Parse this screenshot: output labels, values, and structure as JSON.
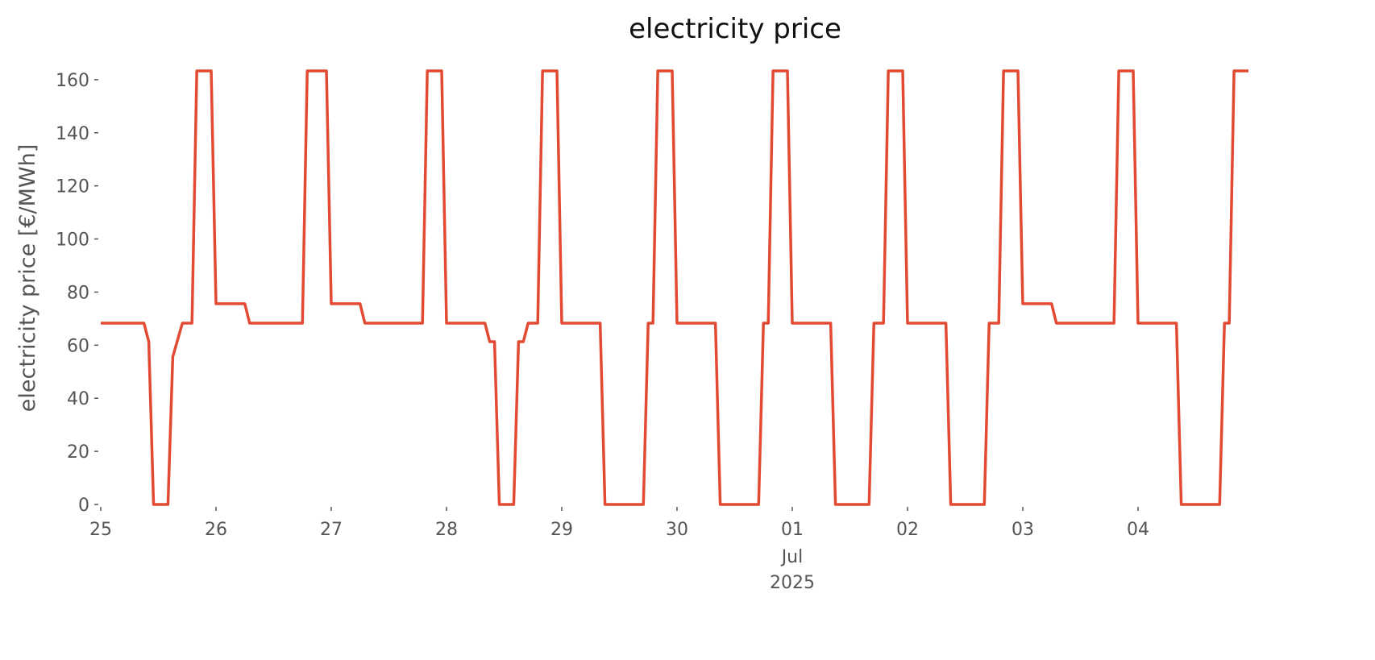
{
  "chart_data": {
    "type": "line",
    "title": "electricity price",
    "ylabel": "electricity price [€/MWh]",
    "x_sublabels": {
      "tick": 6,
      "lines": [
        "Jul",
        "2025"
      ]
    },
    "series": [
      {
        "name": "electricity price",
        "color": "#e24a33",
        "x": [
          0,
          9,
          10,
          11,
          14,
          15,
          17,
          19,
          20,
          23,
          24,
          30,
          31,
          42,
          43,
          47,
          48,
          54,
          55,
          67,
          68,
          71,
          72,
          80,
          81,
          82,
          83,
          86,
          87,
          88,
          89,
          91,
          92,
          95,
          96,
          104,
          105,
          113,
          114,
          115,
          116,
          119,
          120,
          128,
          129,
          137,
          138,
          139,
          140,
          143,
          144,
          152,
          153,
          160,
          161,
          163,
          164,
          167,
          168,
          176,
          177,
          184,
          185,
          187,
          188,
          191,
          192,
          198,
          199,
          211,
          212,
          215,
          216,
          224,
          225,
          233,
          234,
          235,
          236,
          239
        ],
        "values": [
          68.3,
          68.3,
          61.3,
          0,
          0,
          55.6,
          68.3,
          68.3,
          163.3,
          163.3,
          75.6,
          75.6,
          68.3,
          68.3,
          163.3,
          163.3,
          75.6,
          75.6,
          68.3,
          68.3,
          163.3,
          163.3,
          68.3,
          68.3,
          61.3,
          61.3,
          0,
          0,
          61.3,
          61.3,
          68.3,
          68.3,
          163.3,
          163.3,
          68.3,
          68.3,
          0,
          0,
          68.3,
          68.3,
          163.3,
          163.3,
          68.3,
          68.3,
          0,
          0,
          68.3,
          68.3,
          163.3,
          163.3,
          68.3,
          68.3,
          0,
          0,
          68.3,
          68.3,
          163.3,
          163.3,
          68.3,
          68.3,
          0,
          0,
          68.3,
          68.3,
          163.3,
          163.3,
          75.6,
          75.6,
          68.3,
          68.3,
          163.3,
          163.3,
          68.3,
          68.3,
          0,
          0,
          68.3,
          68.3,
          163.3,
          163.3
        ]
      }
    ],
    "xlim": [
      0,
      239
    ],
    "xticks": [
      {
        "value": 0,
        "label": "25"
      },
      {
        "value": 24,
        "label": "26"
      },
      {
        "value": 48,
        "label": "27"
      },
      {
        "value": 72,
        "label": "28"
      },
      {
        "value": 96,
        "label": "29"
      },
      {
        "value": 120,
        "label": "30"
      },
      {
        "value": 144,
        "label": "01"
      },
      {
        "value": 168,
        "label": "02"
      },
      {
        "value": 192,
        "label": "03"
      },
      {
        "value": 216,
        "label": "04"
      }
    ],
    "ylim": [
      0,
      163.3
    ],
    "yticks": [
      0,
      20,
      40,
      60,
      80,
      100,
      120,
      140,
      160
    ],
    "grid": false
  }
}
